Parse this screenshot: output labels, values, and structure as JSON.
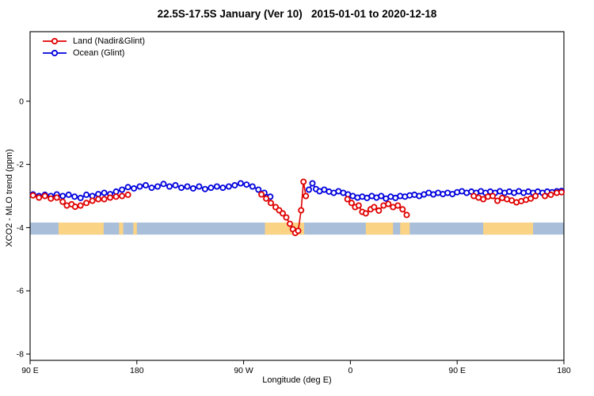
{
  "title": "22.5S-17.5S January (Ver 10)   2015-01-01 to 2020-12-18",
  "legend": {
    "items": [
      {
        "label": "Land (Nadir&Glint)",
        "color": "#e00000"
      },
      {
        "label": "Ocean (Glint)",
        "color": "#0000dd"
      }
    ]
  },
  "chart_data": {
    "type": "line",
    "title": "22.5S-17.5S January (Ver 10)   2015-01-01 to 2020-12-18",
    "xlabel": "Longitude (deg E)",
    "ylabel": "XCO2 - MLO trend (ppm)",
    "xlim": [
      90,
      540
    ],
    "ylim": [
      -8.2,
      2.2
    ],
    "grid": false,
    "legend_position": "top-left",
    "x_ticks": [
      {
        "value": 90,
        "label": "90 E"
      },
      {
        "value": 180,
        "label": "180"
      },
      {
        "value": 270,
        "label": "90 W"
      },
      {
        "value": 360,
        "label": "0"
      },
      {
        "value": 450,
        "label": "90 E"
      },
      {
        "value": 540,
        "label": "180"
      }
    ],
    "y_ticks": [
      {
        "value": 0,
        "label": "0"
      },
      {
        "value": -2,
        "label": "-2"
      },
      {
        "value": -4,
        "label": "-4"
      },
      {
        "value": -6,
        "label": "-6"
      },
      {
        "value": -8,
        "label": "-8"
      }
    ],
    "map_strip": {
      "y_top": -3.84,
      "y_bottom": -4.22,
      "ocean_color": "#a9bed9",
      "land_color": "#fbd385",
      "land_segments": [
        [
          114,
          152
        ],
        [
          165,
          168.5
        ],
        [
          177,
          180
        ],
        [
          288,
          321
        ],
        [
          373,
          396
        ],
        [
          402,
          410
        ],
        [
          472,
          514
        ]
      ]
    },
    "series": [
      {
        "name": "Ocean (Glint)",
        "color": "#0000dd",
        "segments": [
          [
            [
              92.5,
              -2.95
            ],
            [
              97.5,
              -3.0
            ],
            [
              102.5,
              -2.96
            ],
            [
              107.5,
              -3.0
            ],
            [
              112.5,
              -2.95
            ],
            [
              117.5,
              -3.0
            ],
            [
              122.5,
              -2.96
            ],
            [
              127.5,
              -3.02
            ],
            [
              132.5,
              -3.06
            ],
            [
              137.5,
              -2.96
            ],
            [
              142.5,
              -3.0
            ],
            [
              147.5,
              -2.94
            ],
            [
              152.5,
              -2.9
            ],
            [
              157.5,
              -2.94
            ],
            [
              162.5,
              -2.86
            ],
            [
              167.5,
              -2.8
            ],
            [
              172.5,
              -2.72
            ],
            [
              177.5,
              -2.76
            ],
            [
              182.5,
              -2.7
            ],
            [
              187.5,
              -2.66
            ],
            [
              192.5,
              -2.74
            ],
            [
              197.5,
              -2.7
            ],
            [
              202.5,
              -2.62
            ],
            [
              207.5,
              -2.7
            ],
            [
              212.5,
              -2.66
            ],
            [
              217.5,
              -2.74
            ],
            [
              222.5,
              -2.7
            ],
            [
              227.5,
              -2.76
            ],
            [
              232.5,
              -2.7
            ],
            [
              237.5,
              -2.78
            ],
            [
              242.5,
              -2.74
            ],
            [
              247.5,
              -2.7
            ],
            [
              252.5,
              -2.74
            ],
            [
              257.5,
              -2.7
            ],
            [
              262.5,
              -2.66
            ],
            [
              267.5,
              -2.6
            ],
            [
              272.5,
              -2.64
            ],
            [
              277.5,
              -2.7
            ],
            [
              282.5,
              -2.8
            ],
            [
              287.5,
              -2.9
            ],
            [
              292.5,
              -3.02
            ]
          ],
          [
            [
              325,
              -2.8
            ],
            [
              328,
              -2.6
            ],
            [
              331,
              -2.78
            ],
            [
              334,
              -2.85
            ],
            [
              338,
              -2.8
            ],
            [
              342,
              -2.86
            ],
            [
              346,
              -2.9
            ],
            [
              350,
              -2.85
            ],
            [
              354,
              -2.9
            ],
            [
              358,
              -2.95
            ],
            [
              362,
              -3.0
            ],
            [
              366,
              -3.05
            ],
            [
              370,
              -3.02
            ],
            [
              374,
              -3.06
            ],
            [
              378,
              -3.0
            ],
            [
              382,
              -3.05
            ],
            [
              386,
              -3.0
            ],
            [
              390,
              -3.08
            ],
            [
              394,
              -3.02
            ],
            [
              398,
              -3.06
            ],
            [
              402,
              -3.0
            ],
            [
              406,
              -3.02
            ],
            [
              410,
              -2.98
            ],
            [
              414,
              -2.96
            ],
            [
              418,
              -3.0
            ],
            [
              422,
              -2.95
            ],
            [
              426,
              -2.9
            ],
            [
              430,
              -2.95
            ],
            [
              434,
              -2.9
            ],
            [
              438,
              -2.94
            ],
            [
              442,
              -2.9
            ],
            [
              446,
              -2.94
            ],
            [
              450,
              -2.88
            ],
            [
              454,
              -2.85
            ],
            [
              458,
              -2.9
            ],
            [
              462,
              -2.86
            ],
            [
              466,
              -2.9
            ],
            [
              470,
              -2.85
            ],
            [
              474,
              -2.9
            ],
            [
              478,
              -2.86
            ],
            [
              482,
              -2.9
            ],
            [
              486,
              -2.85
            ],
            [
              490,
              -2.9
            ],
            [
              494,
              -2.86
            ],
            [
              498,
              -2.9
            ],
            [
              502,
              -2.85
            ],
            [
              506,
              -2.9
            ],
            [
              510,
              -2.86
            ],
            [
              514,
              -2.9
            ],
            [
              518,
              -2.86
            ],
            [
              522,
              -2.9
            ],
            [
              526,
              -2.86
            ],
            [
              530,
              -2.88
            ],
            [
              534,
              -2.85
            ],
            [
              538,
              -2.84
            ]
          ]
        ]
      },
      {
        "name": "Land (Nadir&Glint)",
        "color": "#e00000",
        "segments": [
          [
            [
              92.5,
              -2.98
            ],
            [
              97.5,
              -3.05
            ],
            [
              102.5,
              -3.0
            ],
            [
              107.5,
              -3.08
            ],
            [
              112.5,
              -3.05
            ],
            [
              117.5,
              -3.18
            ],
            [
              121,
              -3.3
            ],
            [
              125,
              -3.26
            ],
            [
              128,
              -3.34
            ],
            [
              132.5,
              -3.3
            ],
            [
              137.5,
              -3.22
            ],
            [
              142.5,
              -3.15
            ],
            [
              147.5,
              -3.1
            ],
            [
              152.5,
              -3.1
            ],
            [
              157.5,
              -3.05
            ],
            [
              162.5,
              -3.02
            ],
            [
              167.5,
              -3.0
            ],
            [
              172.5,
              -2.96
            ]
          ],
          [
            [
              285,
              -2.95
            ],
            [
              289,
              -3.08
            ],
            [
              293,
              -3.22
            ],
            [
              297,
              -3.35
            ],
            [
              300,
              -3.45
            ],
            [
              303,
              -3.55
            ],
            [
              306,
              -3.68
            ],
            [
              309,
              -3.88
            ],
            [
              311.5,
              -4.05
            ],
            [
              313.5,
              -4.17
            ],
            [
              316,
              -4.1
            ],
            [
              318.5,
              -3.45
            ],
            [
              320.5,
              -2.55
            ],
            [
              322.5,
              -3.0
            ]
          ],
          [
            [
              357.5,
              -3.1
            ],
            [
              361,
              -3.22
            ],
            [
              364,
              -3.35
            ],
            [
              367,
              -3.3
            ],
            [
              370,
              -3.5
            ],
            [
              373,
              -3.55
            ],
            [
              377,
              -3.42
            ],
            [
              380,
              -3.35
            ],
            [
              384,
              -3.46
            ],
            [
              388,
              -3.3
            ],
            [
              392,
              -3.25
            ],
            [
              396,
              -3.35
            ],
            [
              400,
              -3.3
            ],
            [
              404,
              -3.42
            ],
            [
              407.5,
              -3.6
            ]
          ],
          [
            [
              464,
              -3.0
            ],
            [
              468,
              -3.05
            ],
            [
              472,
              -3.1
            ],
            [
              476,
              -3.02
            ],
            [
              480,
              -3.0
            ],
            [
              484,
              -3.15
            ],
            [
              488,
              -3.06
            ],
            [
              492,
              -3.1
            ],
            [
              496,
              -3.14
            ],
            [
              500,
              -3.2
            ],
            [
              504,
              -3.16
            ],
            [
              508,
              -3.12
            ],
            [
              512,
              -3.08
            ],
            [
              516,
              -3.0
            ]
          ],
          [
            [
              524,
              -3.0
            ],
            [
              529,
              -2.96
            ],
            [
              534,
              -2.9
            ],
            [
              538,
              -2.88
            ]
          ]
        ]
      }
    ]
  }
}
